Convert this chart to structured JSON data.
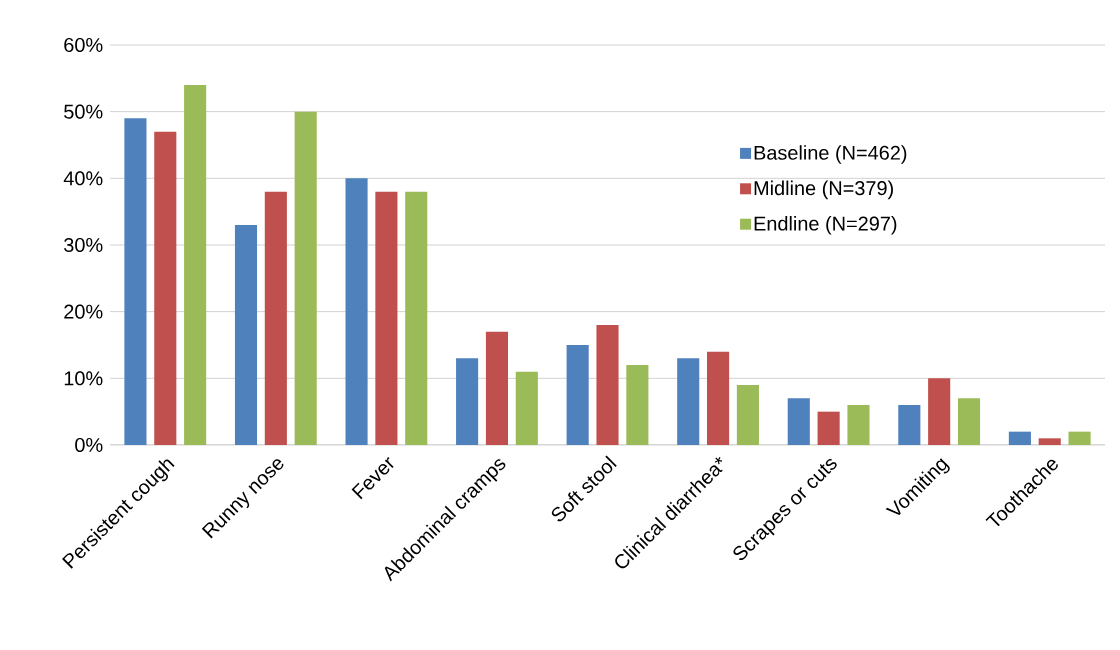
{
  "chart_data": {
    "type": "bar",
    "categories": [
      "Persistent cough",
      "Runny nose",
      "Fever",
      "Abdominal cramps",
      "Soft stool",
      "Clinical diarrhea*",
      "Scrapes or cuts",
      "Vomiting",
      "Toothache"
    ],
    "series": [
      {
        "name": "Baseline (N=462)",
        "color": "#4f81bd",
        "values": [
          49,
          33,
          40,
          13,
          15,
          13,
          7,
          6,
          2
        ]
      },
      {
        "name": "Midline (N=379)",
        "color": "#c0504d",
        "values": [
          47,
          38,
          38,
          17,
          18,
          14,
          5,
          10,
          1
        ]
      },
      {
        "name": "Endline (N=297)",
        "color": "#9bbb59",
        "values": [
          54,
          50,
          38,
          11,
          12,
          9,
          6,
          7,
          2
        ]
      }
    ],
    "ylim": [
      0,
      60
    ],
    "yticks": [
      {
        "value": 0,
        "label": "0%"
      },
      {
        "value": 10,
        "label": "10%"
      },
      {
        "value": 20,
        "label": "20%"
      },
      {
        "value": 30,
        "label": "30%"
      },
      {
        "value": 40,
        "label": "40%"
      },
      {
        "value": 50,
        "label": "50%"
      },
      {
        "value": 60,
        "label": "60%"
      }
    ],
    "grid": "y",
    "legend": "right"
  }
}
